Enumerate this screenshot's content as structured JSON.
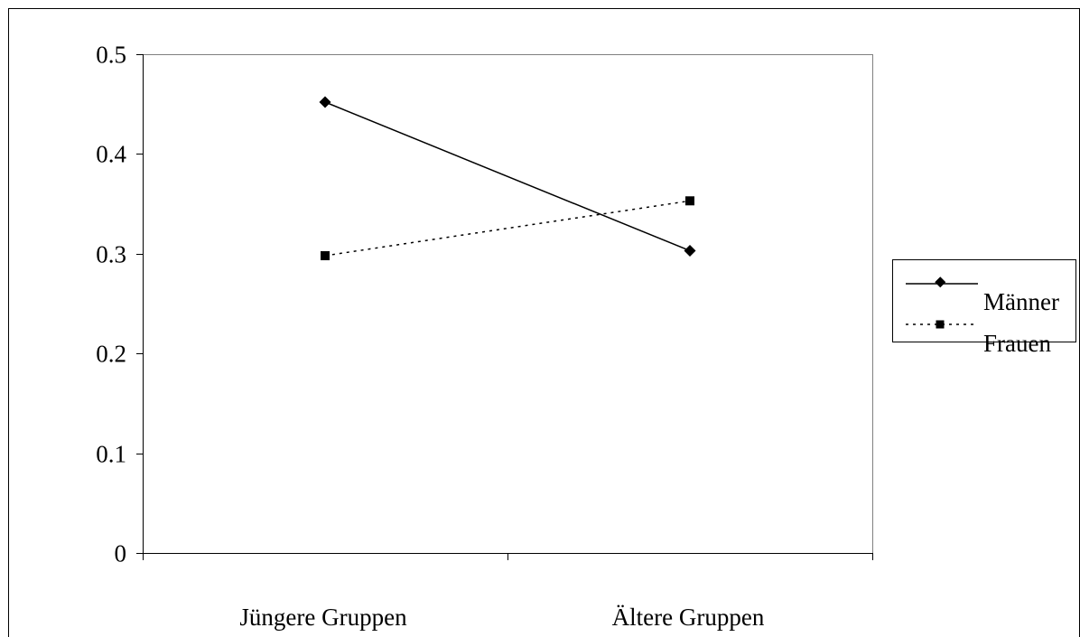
{
  "chart_data": {
    "type": "line",
    "title": "",
    "xlabel": "",
    "ylabel": "",
    "categories": [
      "Jüngere Gruppen",
      "Ältere Gruppen"
    ],
    "ylim": [
      0,
      0.5
    ],
    "yticks": [
      "0",
      "0.1",
      "0.2",
      "0.3",
      "0.4",
      "0.5"
    ],
    "grid": false,
    "legend_position": "right",
    "series": [
      {
        "name": "Männer",
        "values": [
          0.452,
          0.303
        ],
        "line_style": "solid",
        "marker": "diamond",
        "color": "#000000"
      },
      {
        "name": "Frauen",
        "values": [
          0.298,
          0.353
        ],
        "line_style": "dotted",
        "marker": "square",
        "color": "#000000"
      }
    ]
  }
}
